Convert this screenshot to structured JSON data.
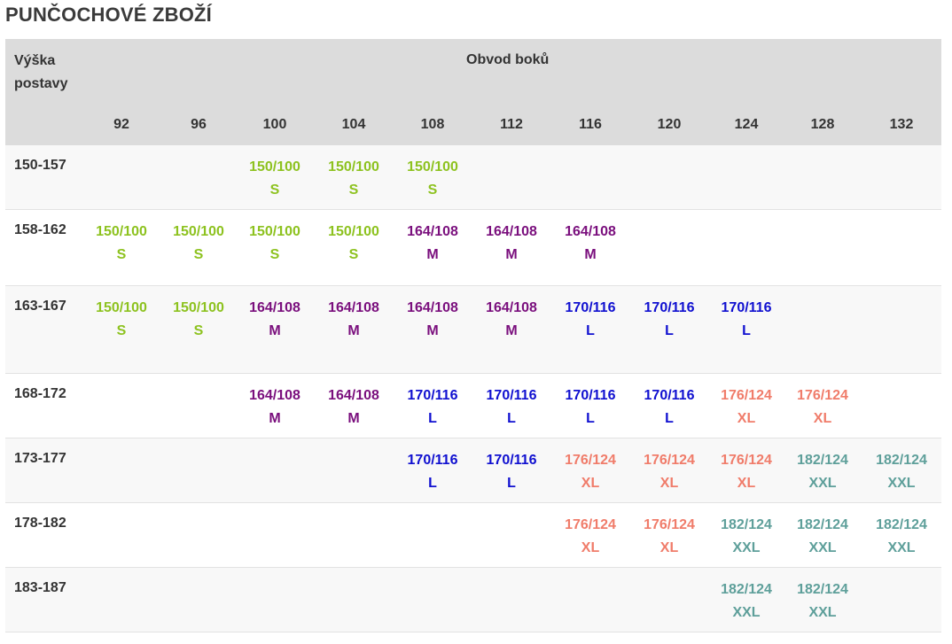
{
  "title": "PUNČOCHOVÉ ZBOŽÍ",
  "header": {
    "row_label": "Výška postavy",
    "group_label": "Obvod boků",
    "columns": [
      "92",
      "96",
      "100",
      "104",
      "108",
      "112",
      "116",
      "120",
      "124",
      "128",
      "132"
    ]
  },
  "colors": {
    "green": "#8dc21f",
    "purple": "#7a0f7d",
    "blue": "#1010d0",
    "salmon": "#f07c6a",
    "teal": "#5e9f9a"
  },
  "rows": [
    {
      "label": "150-157",
      "cells": [
        null,
        null,
        {
          "v": "150/100",
          "s": "S",
          "c": "green"
        },
        {
          "v": "150/100",
          "s": "S",
          "c": "green"
        },
        {
          "v": "150/100",
          "s": "S",
          "c": "green"
        },
        null,
        null,
        null,
        null,
        null,
        null
      ]
    },
    {
      "label": "158-162",
      "cells": [
        {
          "v": "150/100",
          "s": "S",
          "c": "green"
        },
        {
          "v": "150/100",
          "s": "S",
          "c": "green"
        },
        {
          "v": "150/100",
          "s": "S",
          "c": "green"
        },
        {
          "v": "150/100",
          "s": "S",
          "c": "green"
        },
        {
          "v": "164/108",
          "s": "M",
          "c": "purple"
        },
        {
          "v": "164/108",
          "s": "M",
          "c": "purple"
        },
        {
          "v": "164/108",
          "s": "M",
          "c": "purple"
        },
        null,
        null,
        null,
        null
      ]
    },
    {
      "label": "163-167",
      "cells": [
        {
          "v": "150/100",
          "s": "S",
          "c": "green"
        },
        {
          "v": "150/100",
          "s": "S",
          "c": "green"
        },
        {
          "v": "164/108",
          "s": "M",
          "c": "purple"
        },
        {
          "v": "164/108",
          "s": "M",
          "c": "purple"
        },
        {
          "v": "164/108",
          "s": "M",
          "c": "purple"
        },
        {
          "v": "164/108",
          "s": "M",
          "c": "purple"
        },
        {
          "v": "170/116",
          "s": "L",
          "c": "blue"
        },
        {
          "v": "170/116",
          "s": "L",
          "c": "blue"
        },
        {
          "v": "170/116",
          "s": "L",
          "c": "blue"
        },
        null,
        null
      ]
    },
    {
      "label": "168-172",
      "cells": [
        null,
        null,
        {
          "v": "164/108",
          "s": "M",
          "c": "purple"
        },
        {
          "v": "164/108",
          "s": "M",
          "c": "purple"
        },
        {
          "v": "170/116",
          "s": "L",
          "c": "blue"
        },
        {
          "v": "170/116",
          "s": "L",
          "c": "blue"
        },
        {
          "v": "170/116",
          "s": "L",
          "c": "blue"
        },
        {
          "v": "170/116",
          "s": "L",
          "c": "blue"
        },
        {
          "v": "176/124",
          "s": "XL",
          "c": "salmon"
        },
        {
          "v": "176/124",
          "s": "XL",
          "c": "salmon"
        },
        null
      ]
    },
    {
      "label": "173-177",
      "cells": [
        null,
        null,
        null,
        null,
        {
          "v": "170/116",
          "s": "L",
          "c": "blue"
        },
        {
          "v": "170/116",
          "s": "L",
          "c": "blue"
        },
        {
          "v": "176/124",
          "s": "XL",
          "c": "salmon"
        },
        {
          "v": "176/124",
          "s": "XL",
          "c": "salmon"
        },
        {
          "v": "176/124",
          "s": "XL",
          "c": "salmon"
        },
        {
          "v": "182/124",
          "s": "XXL",
          "c": "teal"
        },
        {
          "v": "182/124",
          "s": "XXL",
          "c": "teal"
        }
      ]
    },
    {
      "label": "178-182",
      "cells": [
        null,
        null,
        null,
        null,
        null,
        null,
        {
          "v": "176/124",
          "s": "XL",
          "c": "salmon"
        },
        {
          "v": "176/124",
          "s": "XL",
          "c": "salmon"
        },
        {
          "v": "182/124",
          "s": "XXL",
          "c": "teal"
        },
        {
          "v": "182/124",
          "s": "XXL",
          "c": "teal"
        },
        {
          "v": "182/124",
          "s": "XXL",
          "c": "teal"
        }
      ]
    },
    {
      "label": "183-187",
      "cells": [
        null,
        null,
        null,
        null,
        null,
        null,
        null,
        null,
        {
          "v": "182/124",
          "s": "XXL",
          "c": "teal"
        },
        {
          "v": "182/124",
          "s": "XXL",
          "c": "teal"
        },
        null
      ]
    }
  ]
}
